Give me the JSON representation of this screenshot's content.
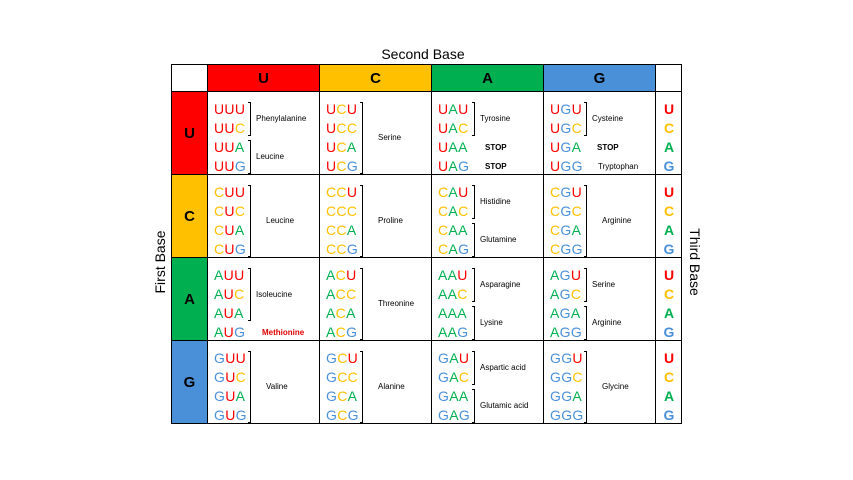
{
  "titles": {
    "second_base": "Second Base",
    "first_base": "First Base",
    "third_base": "Third Base"
  },
  "colors": {
    "U": "#ff0000",
    "C": "#ffc000",
    "A": "#00b050",
    "G": "#4a90d9"
  },
  "bases": [
    "U",
    "C",
    "A",
    "G"
  ],
  "rows": [
    {
      "first": "U",
      "cols": [
        {
          "codons": [
            "UUU",
            "UUC",
            "UUA",
            "UUG"
          ],
          "groups": [
            {
              "label": "Phenylalanine",
              "span": [
                0,
                1
              ],
              "type": "bracket"
            },
            {
              "label": "Leucine",
              "span": [
                2,
                3
              ],
              "type": "bracket"
            }
          ]
        },
        {
          "codons": [
            "UCU",
            "UCC",
            "UCA",
            "UCG"
          ],
          "groups": [
            {
              "label": "Serine",
              "span": [
                0,
                3
              ],
              "type": "bracket"
            }
          ]
        },
        {
          "codons": [
            "UAU",
            "UAC",
            "UAA",
            "UAG"
          ],
          "groups": [
            {
              "label": "Tyrosine",
              "span": [
                0,
                1
              ],
              "type": "bracket"
            },
            {
              "label": "STOP",
              "span": [
                2,
                2
              ],
              "type": "stop"
            },
            {
              "label": "STOP",
              "span": [
                3,
                3
              ],
              "type": "stop"
            }
          ]
        },
        {
          "codons": [
            "UGU",
            "UGC",
            "UGA",
            "UGG"
          ],
          "groups": [
            {
              "label": "Cysteine",
              "span": [
                0,
                1
              ],
              "type": "bracket"
            },
            {
              "label": "STOP",
              "span": [
                2,
                2
              ],
              "type": "stop"
            },
            {
              "label": "Tryptophan",
              "span": [
                3,
                3
              ],
              "type": "plain"
            }
          ]
        }
      ]
    },
    {
      "first": "C",
      "cols": [
        {
          "codons": [
            "CUU",
            "CUC",
            "CUA",
            "CUG"
          ],
          "groups": [
            {
              "label": "Leucine",
              "span": [
                0,
                3
              ],
              "type": "bracket"
            }
          ]
        },
        {
          "codons": [
            "CCU",
            "CCC",
            "CCA",
            "CCG"
          ],
          "groups": [
            {
              "label": "Proline",
              "span": [
                0,
                3
              ],
              "type": "bracket"
            }
          ]
        },
        {
          "codons": [
            "CAU",
            "CAC",
            "CAA",
            "CAG"
          ],
          "groups": [
            {
              "label": "Histidine",
              "span": [
                0,
                1
              ],
              "type": "bracket"
            },
            {
              "label": "Glutamine",
              "span": [
                2,
                3
              ],
              "type": "bracket"
            }
          ]
        },
        {
          "codons": [
            "CGU",
            "CGC",
            "CGA",
            "CGG"
          ],
          "groups": [
            {
              "label": "Arginine",
              "span": [
                0,
                3
              ],
              "type": "bracket"
            }
          ]
        }
      ]
    },
    {
      "first": "A",
      "cols": [
        {
          "codons": [
            "AUU",
            "AUC",
            "AUA",
            "AUG"
          ],
          "groups": [
            {
              "label": "Isoleucine",
              "span": [
                0,
                2
              ],
              "type": "bracket"
            },
            {
              "label": "Methionine",
              "span": [
                3,
                3
              ],
              "type": "start"
            }
          ]
        },
        {
          "codons": [
            "ACU",
            "ACC",
            "ACA",
            "ACG"
          ],
          "groups": [
            {
              "label": "Threonine",
              "span": [
                0,
                3
              ],
              "type": "bracket"
            }
          ]
        },
        {
          "codons": [
            "AAU",
            "AAC",
            "AAA",
            "AAG"
          ],
          "groups": [
            {
              "label": "Asparagine",
              "span": [
                0,
                1
              ],
              "type": "bracket"
            },
            {
              "label": "Lysine",
              "span": [
                2,
                3
              ],
              "type": "bracket"
            }
          ]
        },
        {
          "codons": [
            "AGU",
            "AGC",
            "AGA",
            "AGG"
          ],
          "groups": [
            {
              "label": "Serine",
              "span": [
                0,
                1
              ],
              "type": "bracket"
            },
            {
              "label": "Arginine",
              "span": [
                2,
                3
              ],
              "type": "bracket"
            }
          ]
        }
      ]
    },
    {
      "first": "G",
      "cols": [
        {
          "codons": [
            "GUU",
            "GUC",
            "GUA",
            "GUG"
          ],
          "groups": [
            {
              "label": "Valine",
              "span": [
                0,
                3
              ],
              "type": "bracket"
            }
          ]
        },
        {
          "codons": [
            "GCU",
            "GCC",
            "GCA",
            "GCG"
          ],
          "groups": [
            {
              "label": "Alanine",
              "span": [
                0,
                3
              ],
              "type": "bracket"
            }
          ]
        },
        {
          "codons": [
            "GAU",
            "GAC",
            "GAA",
            "GAG"
          ],
          "groups": [
            {
              "label": "Aspartic acid",
              "span": [
                0,
                1
              ],
              "type": "bracket"
            },
            {
              "label": "Glutamic acid",
              "span": [
                2,
                3
              ],
              "type": "bracket"
            }
          ]
        },
        {
          "codons": [
            "GGU",
            "GGC",
            "GGA",
            "GGG"
          ],
          "groups": [
            {
              "label": "Glycine",
              "span": [
                0,
                3
              ],
              "type": "bracket"
            }
          ]
        }
      ]
    }
  ]
}
